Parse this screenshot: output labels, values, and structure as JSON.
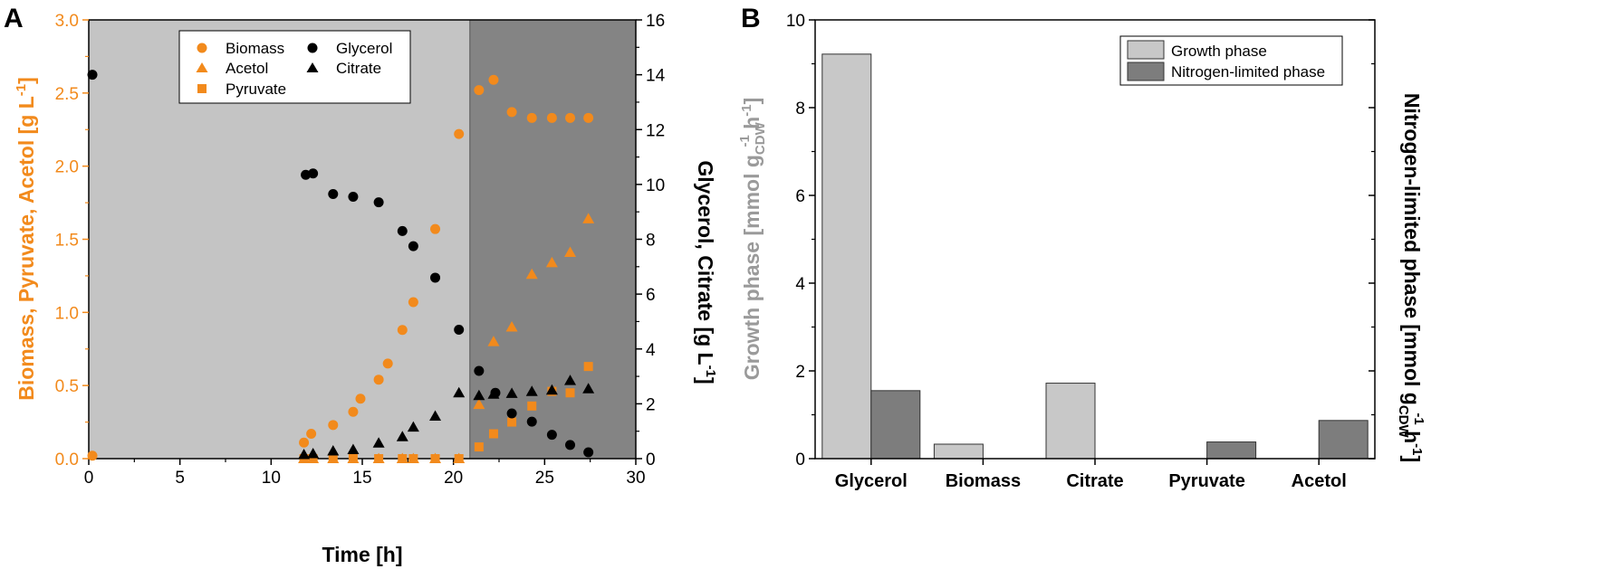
{
  "colors": {
    "orange": "#F28A1C",
    "black": "#000000",
    "phase_growth_bg": "#C4C4C4",
    "phase_nlim_bg": "#848484",
    "growth_bar": "#C8C8C8",
    "nlim_bar": "#7D7D7D",
    "grey_label": "#9A9A9A"
  },
  "chart_data": [
    {
      "panel": "A",
      "type": "scatter",
      "xlabel": "Time [h]",
      "ylabel_left": "Biomass, Pyruvate, Acetol [g L-1]",
      "ylabel_right": "Glycerol, Citrate [g L-1]",
      "ylabel_left_parts": [
        "Biomass, Pyruvate, Acetol [g L",
        "-1",
        "]"
      ],
      "ylabel_right_parts": [
        "Glycerol, Citrate [g L",
        "-1",
        "]"
      ],
      "xlim": [
        0,
        30
      ],
      "ylim_left": [
        0,
        3
      ],
      "ylim_right": [
        0,
        16
      ],
      "xticks": [
        "0",
        "5",
        "10",
        "15",
        "20",
        "25",
        "30"
      ],
      "yticks_left": [
        "0.0",
        "0.5",
        "1.0",
        "1.5",
        "2.0",
        "2.5",
        "3.0"
      ],
      "yticks_right": [
        "0",
        "2",
        "4",
        "6",
        "8",
        "10",
        "12",
        "14",
        "16"
      ],
      "phase_boundary_x": 20.9,
      "legend": [
        "Biomass",
        "Glycerol",
        "Acetol",
        "Citrate",
        "Pyruvate"
      ],
      "series": [
        {
          "name": "Biomass",
          "axis": "left",
          "marker": "circle",
          "color": "orange",
          "x": [
            0.2,
            11.8,
            12.2,
            13.4,
            14.5,
            14.9,
            15.9,
            16.4,
            17.2,
            17.8,
            19.0,
            20.3,
            21.4,
            22.2,
            23.2,
            24.3,
            25.4,
            26.4,
            27.4
          ],
          "y": [
            0.02,
            0.11,
            0.17,
            0.23,
            0.32,
            0.41,
            0.54,
            0.65,
            0.88,
            1.07,
            1.57,
            2.22,
            2.52,
            2.59,
            2.37,
            2.33,
            2.33,
            2.33,
            2.33
          ]
        },
        {
          "name": "Acetol",
          "axis": "left",
          "marker": "triangle",
          "color": "orange",
          "x": [
            11.8,
            12.3,
            13.4,
            14.5,
            15.9,
            17.2,
            17.8,
            19.0,
            20.3,
            21.4,
            22.2,
            23.2,
            24.3,
            25.4,
            26.4,
            27.4
          ],
          "y": [
            0.0,
            0.0,
            0.0,
            0.0,
            0.0,
            0.0,
            0.0,
            0.0,
            0.0,
            0.37,
            0.8,
            0.9,
            1.26,
            1.34,
            1.41,
            1.64
          ]
        },
        {
          "name": "Pyruvate",
          "axis": "left",
          "marker": "square",
          "color": "orange",
          "x": [
            11.8,
            12.3,
            13.4,
            14.5,
            15.9,
            17.2,
            17.8,
            19.0,
            20.3,
            21.4,
            22.2,
            23.2,
            24.3,
            25.4,
            26.4,
            27.4
          ],
          "y": [
            0.0,
            0.0,
            0.0,
            0.0,
            0.0,
            0.0,
            0.0,
            0.0,
            0.0,
            0.08,
            0.17,
            0.25,
            0.36,
            0.46,
            0.45,
            0.63
          ]
        },
        {
          "name": "Glycerol",
          "axis": "right",
          "marker": "circle",
          "color": "black",
          "x": [
            0.2,
            11.9,
            12.3,
            13.4,
            14.5,
            15.9,
            17.2,
            17.8,
            19.0,
            20.3,
            21.4,
            22.3,
            23.2,
            24.3,
            25.4,
            26.4,
            27.4
          ],
          "y": [
            14.0,
            10.35,
            10.4,
            9.65,
            9.55,
            9.35,
            8.3,
            7.75,
            6.6,
            4.7,
            3.2,
            2.4,
            1.65,
            1.35,
            0.87,
            0.5,
            0.23
          ]
        },
        {
          "name": "Citrate",
          "axis": "right",
          "marker": "triangle",
          "color": "black",
          "x": [
            11.8,
            12.3,
            13.4,
            14.5,
            15.9,
            17.2,
            17.8,
            19.0,
            20.3,
            21.4,
            22.2,
            23.2,
            24.3,
            25.4,
            26.4,
            27.4
          ],
          "y": [
            0.15,
            0.18,
            0.28,
            0.33,
            0.57,
            0.8,
            1.15,
            1.55,
            2.4,
            2.3,
            2.35,
            2.38,
            2.45,
            2.5,
            2.85,
            2.55
          ]
        }
      ]
    },
    {
      "panel": "B",
      "type": "bar",
      "categories": [
        "Glycerol",
        "Biomass",
        "Citrate",
        "Pyruvate",
        "Acetol"
      ],
      "ylim": [
        0,
        10
      ],
      "yticks": [
        "0",
        "2",
        "4",
        "6",
        "8",
        "10"
      ],
      "ylabel_left_parts": [
        "Growth phase",
        " [mmol g",
        "CDW",
        "-1",
        " h",
        "-1",
        "]"
      ],
      "ylabel_right_parts": [
        "Nitrogen-limited phase [mmol g",
        "CDW",
        "-1",
        " h",
        "-1",
        "]"
      ],
      "series": [
        {
          "name": "Growth phase",
          "color": "growth_bar",
          "values": [
            9.22,
            0.33,
            1.72,
            0.0,
            0.0
          ]
        },
        {
          "name": "Nitrogen-limited phase",
          "color": "nlim_bar",
          "values": [
            1.55,
            0.0,
            0.0,
            0.38,
            0.87
          ]
        }
      ],
      "legend": [
        "Growth phase",
        "Nitrogen-limited phase"
      ]
    }
  ]
}
